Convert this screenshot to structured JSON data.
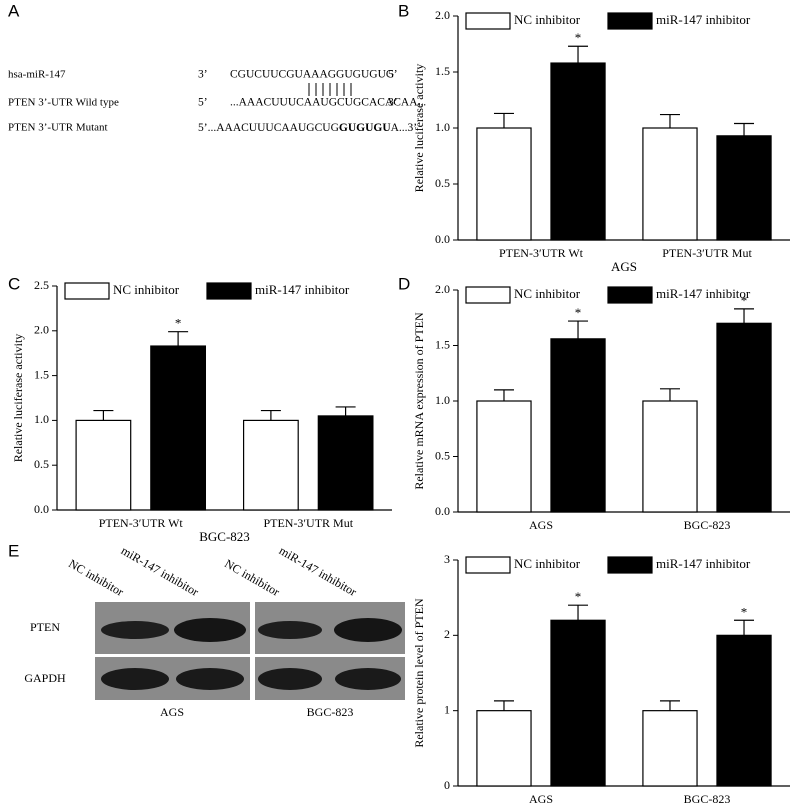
{
  "alignment": {
    "panel": "A",
    "rows": [
      {
        "name": "hsa-miR-147",
        "segments": [
          {
            "text": "3’",
            "bold": false
          },
          {
            "text": "CGUCUUCGUAAAGGUGUGUG",
            "bold": false
          },
          {
            "text": "5’",
            "bold": false
          }
        ]
      },
      {
        "name": "PTEN 3’-UTR Wild type",
        "segments": [
          {
            "text": "5’",
            "bold": false
          },
          {
            "text": "...AAACUUUCAAUGCUGCACACAA...",
            "bold": false
          },
          {
            "text": "3’",
            "bold": false
          }
        ]
      },
      {
        "name": "PTEN 3’-UTR Mutant",
        "segments": [
          {
            "text": "5’...AAACUUUCAAUGCUG",
            "bold": false
          },
          {
            "text": "GUGUGU",
            "bold": true
          },
          {
            "text": "A...3’",
            "bold": false
          }
        ]
      }
    ]
  },
  "western_blot": {
    "panel": "E",
    "lanes": [
      "NC inhibitor",
      "miR-147 inhibitor",
      "NC inhibitor",
      "miR-147 inhibitor"
    ],
    "proteins": [
      "PTEN",
      "GAPDH"
    ],
    "groups": [
      "AGS",
      "BGC-823"
    ]
  },
  "chart_data": [
    {
      "type": "bar",
      "panel": "B",
      "y_label": "Relative luciferase activity",
      "x_label": "AGS",
      "categories": [
        "PTEN-3′UTR Wt",
        "PTEN-3′UTR Mut"
      ],
      "series": [
        {
          "name": "NC inhibitor",
          "color": "#ffffff",
          "values": [
            1.0,
            1.0
          ],
          "errors": [
            0.13,
            0.12
          ],
          "significance": [
            null,
            null
          ]
        },
        {
          "name": "miR-147 inhibitor",
          "color": "#000000",
          "values": [
            1.58,
            0.93
          ],
          "errors": [
            0.15,
            0.11
          ],
          "significance": [
            "*",
            null
          ]
        }
      ],
      "ylim": [
        0,
        2
      ],
      "yticks": [
        {
          "value": 0,
          "label": "0.0"
        },
        {
          "value": 0.5,
          "label": "0.5"
        },
        {
          "value": 1,
          "label": "1.0"
        },
        {
          "value": 1.5,
          "label": "1.5"
        },
        {
          "value": 2,
          "label": "2.0"
        }
      ]
    },
    {
      "type": "bar",
      "panel": "C",
      "y_label": "Relative luciferase activity",
      "x_label": "BGC-823",
      "categories": [
        "PTEN-3′UTR Wt",
        "PTEN-3′UTR Mut"
      ],
      "series": [
        {
          "name": "NC inhibitor",
          "color": "#ffffff",
          "values": [
            1.0,
            1.0
          ],
          "errors": [
            0.11,
            0.11
          ],
          "significance": [
            null,
            null
          ]
        },
        {
          "name": "miR-147 inhibitor",
          "color": "#000000",
          "values": [
            1.83,
            1.05
          ],
          "errors": [
            0.16,
            0.1
          ],
          "significance": [
            "*",
            null
          ]
        }
      ],
      "ylim": [
        0,
        2.5
      ],
      "yticks": [
        {
          "value": 0,
          "label": "0.0"
        },
        {
          "value": 0.5,
          "label": "0.5"
        },
        {
          "value": 1,
          "label": "1.0"
        },
        {
          "value": 1.5,
          "label": "1.5"
        },
        {
          "value": 2,
          "label": "2.0"
        },
        {
          "value": 2.5,
          "label": "2.5"
        }
      ]
    },
    {
      "type": "bar",
      "panel": "D",
      "y_label": "Relative mRNA expression of PTEN",
      "categories": [
        "AGS",
        "BGC-823"
      ],
      "series": [
        {
          "name": "NC inhibitor",
          "color": "#ffffff",
          "values": [
            1.0,
            1.0
          ],
          "errors": [
            0.1,
            0.11
          ],
          "significance": [
            null,
            null
          ]
        },
        {
          "name": "miR-147 inhibitor",
          "color": "#000000",
          "values": [
            1.56,
            1.7
          ],
          "errors": [
            0.16,
            0.13
          ],
          "significance": [
            "*",
            "*"
          ]
        }
      ],
      "ylim": [
        0,
        2
      ],
      "yticks": [
        {
          "value": 0,
          "label": "0.0"
        },
        {
          "value": 0.5,
          "label": "0.5"
        },
        {
          "value": 1,
          "label": "1.0"
        },
        {
          "value": 1.5,
          "label": "1.5"
        },
        {
          "value": 2,
          "label": "2.0"
        }
      ]
    },
    {
      "type": "bar",
      "y_label": "Relative protein level of PTEN",
      "categories": [
        "AGS",
        "BGC-823"
      ],
      "series": [
        {
          "name": "NC inhibitor",
          "color": "#ffffff",
          "values": [
            1.0,
            1.0
          ],
          "errors": [
            0.13,
            0.13
          ],
          "significance": [
            null,
            null
          ]
        },
        {
          "name": "miR-147 inhibitor",
          "color": "#000000",
          "values": [
            2.2,
            2.0
          ],
          "errors": [
            0.2,
            0.2
          ],
          "significance": [
            "*",
            "*"
          ]
        }
      ],
      "ylim": [
        0,
        3
      ],
      "yticks": [
        0,
        1,
        2,
        3
      ]
    }
  ]
}
